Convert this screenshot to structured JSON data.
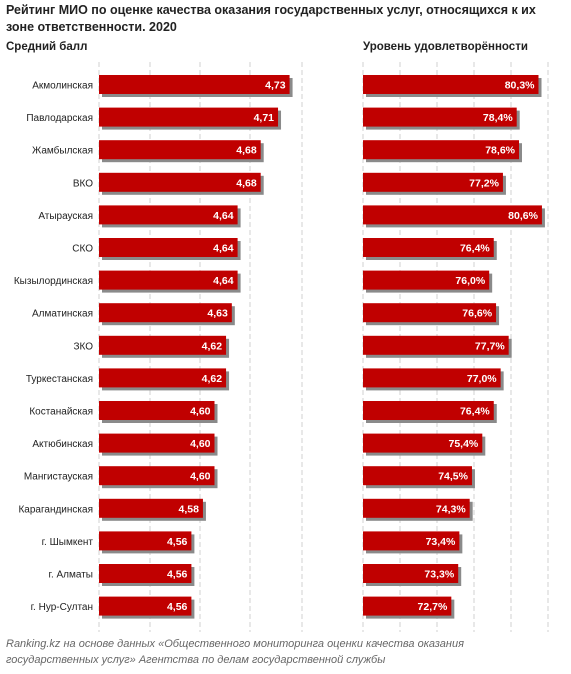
{
  "title": "Рейтинг МИО по оценке качества оказания государственных услуг, относящихся к их зоне ответственности. 2020",
  "left_subtitle": "Средний балл",
  "right_subtitle": "Уровень удовлетворённости",
  "source": "Ranking.kz на основе данных «Общественного мониторинга оценки качества оказания государственных услуг» Агентства по делам государственной службы",
  "colors": {
    "bar": "#c00000",
    "bar_shadow": "#8a8a8a",
    "grid": "#d0d0d0",
    "label_text": "#ffffff"
  },
  "chart_data": [
    {
      "type": "bar",
      "orientation": "horizontal",
      "title": "Средний балл",
      "categories": [
        "Акмолинская",
        "Павлодарская",
        "Жамбылская",
        "ВКО",
        "Атырауская",
        "СКО",
        "Кызылординская",
        "Алматинская",
        "ЗКО",
        "Туркестанская",
        "Костанайская",
        "Актюбинская",
        "Мангистауская",
        "Карагандинская",
        "г. Шымкент",
        "г. Алматы",
        "г. Нур-Султан"
      ],
      "values": [
        4.73,
        4.71,
        4.68,
        4.68,
        4.64,
        4.64,
        4.64,
        4.63,
        4.62,
        4.62,
        4.6,
        4.6,
        4.6,
        4.58,
        4.56,
        4.56,
        4.56
      ],
      "value_labels": [
        "4,73",
        "4,71",
        "4,68",
        "4,68",
        "4,64",
        "4,64",
        "4,64",
        "4,63",
        "4,62",
        "4,62",
        "4,60",
        "4,60",
        "4,60",
        "4,58",
        "4,56",
        "4,56",
        "4,56"
      ],
      "xlim": [
        4.4,
        4.8
      ],
      "grid": true
    },
    {
      "type": "bar",
      "orientation": "horizontal",
      "title": "Уровень удовлетворённости",
      "categories": [
        "Акмолинская",
        "Павлодарская",
        "Жамбылская",
        "ВКО",
        "Атырауская",
        "СКО",
        "Кызылординская",
        "Алматинская",
        "ЗКО",
        "Туркестанская",
        "Костанайская",
        "Актюбинская",
        "Мангистауская",
        "Карагандинская",
        "г. Шымкент",
        "г. Алматы",
        "г. Нур-Султан"
      ],
      "values": [
        80.3,
        78.4,
        78.6,
        77.2,
        80.6,
        76.4,
        76.0,
        76.6,
        77.7,
        77.0,
        76.4,
        75.4,
        74.5,
        74.3,
        73.4,
        73.3,
        72.7
      ],
      "value_labels": [
        "80,3%",
        "78,4%",
        "78,6%",
        "77,2%",
        "80,6%",
        "76,4%",
        "76,0%",
        "76,6%",
        "77,7%",
        "77,0%",
        "76,4%",
        "75,4%",
        "74,5%",
        "74,3%",
        "73,4%",
        "73,3%",
        "72,7%"
      ],
      "xlim": [
        65,
        82
      ],
      "grid": true
    }
  ]
}
